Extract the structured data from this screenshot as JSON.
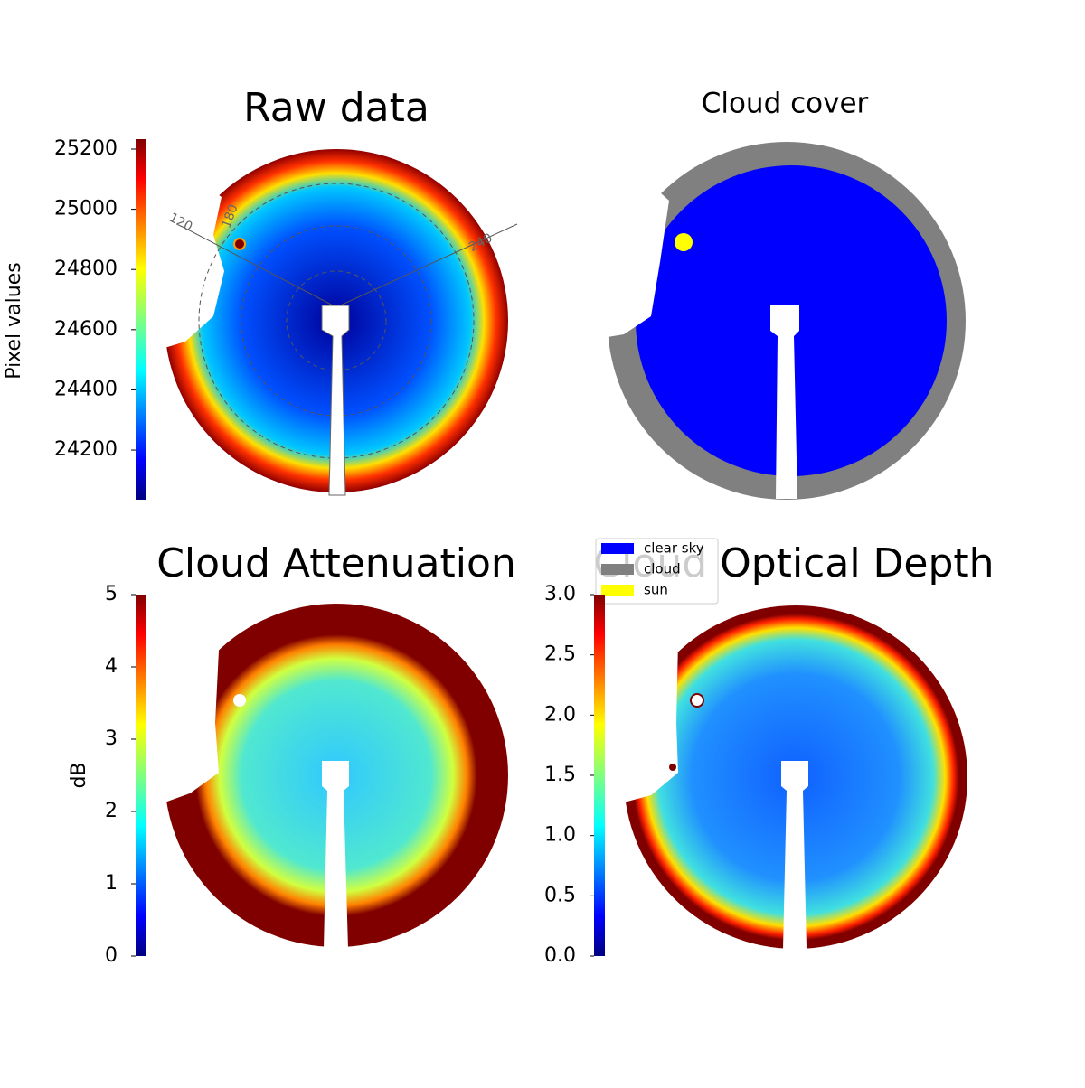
{
  "chart_data": [
    {
      "type": "image",
      "title": "Raw data",
      "ylabel": "Pixel values",
      "ylim": [
        24035,
        25233
      ],
      "yticks": [
        24200,
        24400,
        24600,
        24800,
        25000,
        25200
      ],
      "polar_labels": [
        "120",
        "180",
        "240"
      ]
    },
    {
      "type": "image",
      "title": "Cloud cover",
      "legend": [
        {
          "name": "clear sky",
          "color": "#0000ff"
        },
        {
          "name": "cloud",
          "color": "#808080"
        },
        {
          "name": "sun",
          "color": "#ffff00"
        }
      ]
    },
    {
      "type": "image",
      "title": "Cloud Attenuation",
      "ylabel": "dB",
      "ylim": [
        0,
        5
      ],
      "yticks": [
        0,
        1,
        2,
        3,
        4,
        5
      ]
    },
    {
      "type": "image",
      "title": "Cloud Optical Depth",
      "ylim": [
        0,
        3
      ],
      "yticks": [
        {
          "value": 0,
          "label": "0.0"
        },
        0.5,
        {
          "value": 1,
          "label": "1.0"
        },
        1.5,
        {
          "value": 2,
          "label": "2.0"
        },
        2.5,
        {
          "value": 3,
          "label": "3.0"
        }
      ]
    }
  ]
}
